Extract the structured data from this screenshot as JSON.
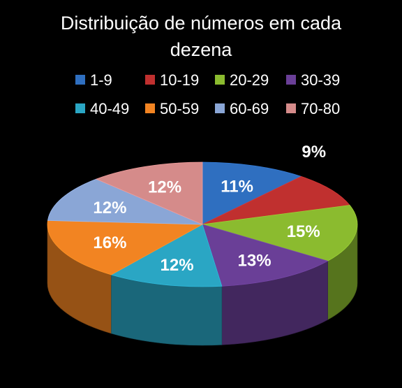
{
  "chart_data": {
    "type": "pie",
    "title": "Distribuição de números em cada dezena",
    "title_lines": [
      "Distribuição de números em cada",
      "dezena"
    ],
    "style": "3d",
    "legend_position": "top",
    "categories": [
      "1-9",
      "10-19",
      "20-29",
      "30-39",
      "40-49",
      "50-59",
      "60-69",
      "70-80"
    ],
    "values": [
      11,
      9,
      15,
      13,
      12,
      16,
      12,
      12
    ],
    "labels": [
      "11%",
      "9%",
      "15%",
      "13%",
      "12%",
      "16%",
      "12%",
      "12%"
    ],
    "colors": [
      "#2f6fc0",
      "#c0302f",
      "#8bbb2f",
      "#6a3f97",
      "#2aa6c4",
      "#f28422",
      "#8aa6d6",
      "#d58b8a"
    ]
  }
}
